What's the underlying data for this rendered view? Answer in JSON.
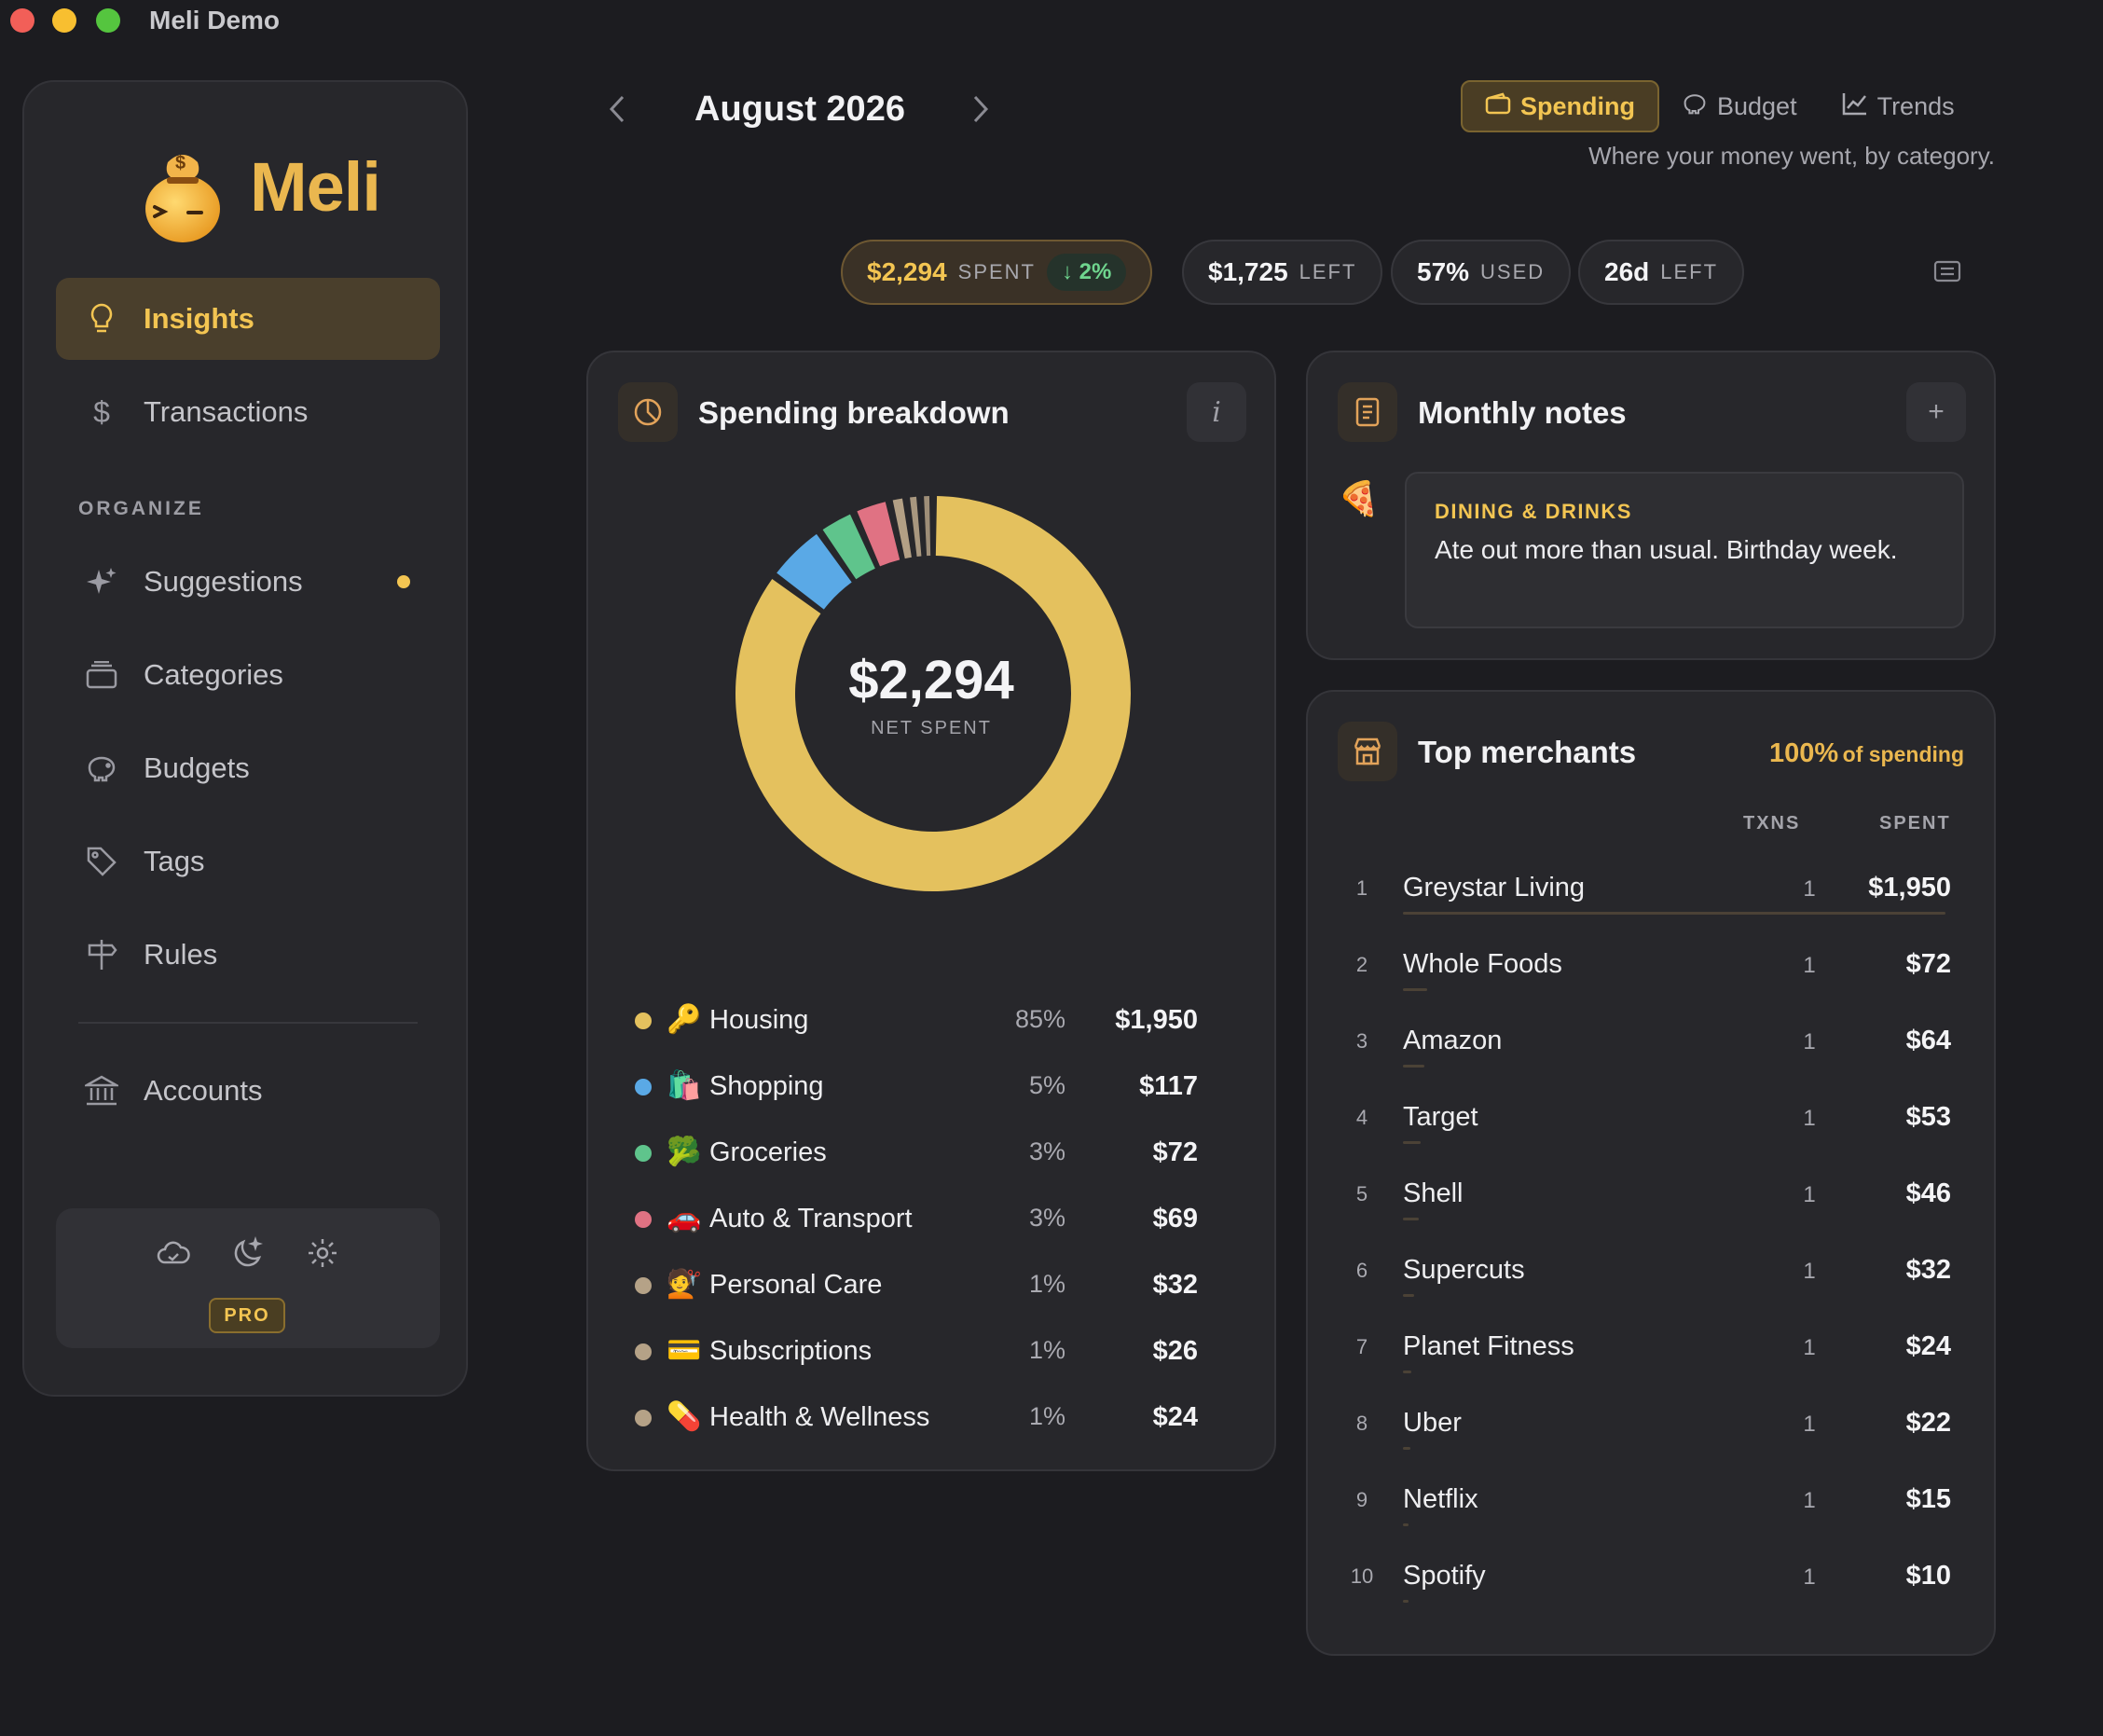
{
  "window": {
    "title": "Meli Demo",
    "colors": {
      "close": "#f25f58",
      "minimize": "#f8bf30",
      "zoom": "#55c53f"
    }
  },
  "sidebar": {
    "logo_text": "Meli",
    "coin_symbol": "$",
    "items": [
      {
        "label": "Insights",
        "icon": "lightbulb-icon",
        "active": true
      },
      {
        "label": "Transactions",
        "icon": "dollar-icon"
      }
    ],
    "section_label": "ORGANIZE",
    "organize_items": [
      {
        "label": "Suggestions",
        "icon": "sparkles-icon",
        "badge": true
      },
      {
        "label": "Categories",
        "icon": "stack-icon"
      },
      {
        "label": "Budgets",
        "icon": "piggy-bank-icon"
      },
      {
        "label": "Tags",
        "icon": "tag-icon"
      },
      {
        "label": "Rules",
        "icon": "signpost-icon"
      }
    ],
    "bottom_items": [
      {
        "label": "Accounts",
        "icon": "bank-icon"
      }
    ],
    "footer": {
      "icons": [
        "cloud-icon",
        "moon-icon",
        "gear-icon"
      ],
      "badge": "PRO"
    }
  },
  "header": {
    "month": "August 2026",
    "tabs": [
      {
        "label": "Spending",
        "icon": "wallet-icon",
        "selected": true
      },
      {
        "label": "Budget",
        "icon": "piggy-bank-icon"
      },
      {
        "label": "Trends",
        "icon": "line-chart-icon"
      }
    ],
    "subtitle": "Where your money went, by category."
  },
  "stats": [
    {
      "value": "$2,294",
      "label": "SPENT",
      "delta": "↓ 2%"
    },
    {
      "value": "$1,725",
      "label": "LEFT"
    },
    {
      "value": "57%",
      "label": "USED"
    },
    {
      "value": "26d",
      "label": "LEFT"
    }
  ],
  "breakdown": {
    "title": "Spending breakdown",
    "info": "i",
    "total": "$2,294",
    "total_label": "NET SPENT",
    "categories": [
      {
        "emoji": "🔑",
        "name": "Housing",
        "pct": "85%",
        "amount": "$1,950",
        "value": 1950,
        "color": "#e4c15e"
      },
      {
        "emoji": "🛍️",
        "name": "Shopping",
        "pct": "5%",
        "amount": "$117",
        "value": 117,
        "color": "#5aa9e6"
      },
      {
        "emoji": "🥦",
        "name": "Groceries",
        "pct": "3%",
        "amount": "$72",
        "value": 72,
        "color": "#5fc48c"
      },
      {
        "emoji": "🚗",
        "name": "Auto & Transport",
        "pct": "3%",
        "amount": "$69",
        "value": 69,
        "color": "#e07283"
      },
      {
        "emoji": "💇",
        "name": "Personal Care",
        "pct": "1%",
        "amount": "$32",
        "value": 32,
        "color": "#b5a287"
      },
      {
        "emoji": "💳",
        "name": "Subscriptions",
        "pct": "1%",
        "amount": "$26",
        "value": 26,
        "color": "#b5a287"
      },
      {
        "emoji": "💊",
        "name": "Health & Wellness",
        "pct": "1%",
        "amount": "$24",
        "value": 24,
        "color": "#b5a287"
      }
    ]
  },
  "notes": {
    "title": "Monthly notes",
    "add": "+",
    "items": [
      {
        "emoji": "🍕",
        "category": "DINING & DRINKS",
        "text": "Ate out more than usual. Birthday week."
      }
    ]
  },
  "merchants": {
    "title": "Top merchants",
    "share_value": "100%",
    "share_text": "of spending",
    "col_txns": "TXNS",
    "col_spent": "SPENT",
    "rows": [
      {
        "rank": "1",
        "name": "Greystar Living",
        "txns": "1",
        "spent": "$1,950",
        "value": 1950
      },
      {
        "rank": "2",
        "name": "Whole Foods",
        "txns": "1",
        "spent": "$72",
        "value": 72
      },
      {
        "rank": "3",
        "name": "Amazon",
        "txns": "1",
        "spent": "$64",
        "value": 64
      },
      {
        "rank": "4",
        "name": "Target",
        "txns": "1",
        "spent": "$53",
        "value": 53
      },
      {
        "rank": "5",
        "name": "Shell",
        "txns": "1",
        "spent": "$46",
        "value": 46
      },
      {
        "rank": "6",
        "name": "Supercuts",
        "txns": "1",
        "spent": "$32",
        "value": 32
      },
      {
        "rank": "7",
        "name": "Planet Fitness",
        "txns": "1",
        "spent": "$24",
        "value": 24
      },
      {
        "rank": "8",
        "name": "Uber",
        "txns": "1",
        "spent": "$22",
        "value": 22
      },
      {
        "rank": "9",
        "name": "Netflix",
        "txns": "1",
        "spent": "$15",
        "value": 15
      },
      {
        "rank": "10",
        "name": "Spotify",
        "txns": "1",
        "spent": "$10",
        "value": 10
      }
    ]
  }
}
